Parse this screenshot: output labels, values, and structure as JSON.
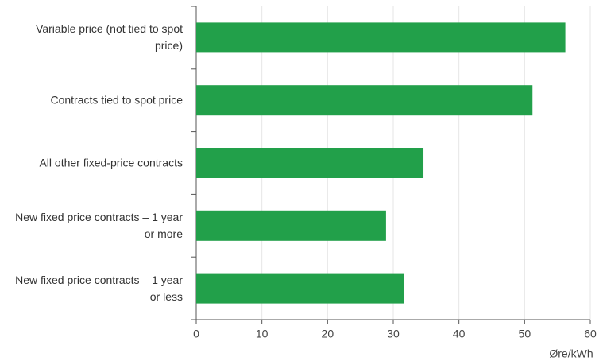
{
  "chart_data": {
    "type": "bar",
    "orientation": "horizontal",
    "categories": [
      "Variable price (not tied to spot price)",
      "Contracts tied to spot price",
      "All other fixed-price contracts",
      "New fixed price contracts – 1 year or more",
      "New fixed price contracts – 1 year or less"
    ],
    "values": [
      56.2,
      51.2,
      34.6,
      28.9,
      31.6
    ],
    "color": "#22a04a",
    "xlim": [
      0,
      60
    ],
    "xticks": [
      0,
      10,
      20,
      30,
      40,
      50,
      60
    ],
    "x_label": "Øre/kWh",
    "grid": true
  }
}
